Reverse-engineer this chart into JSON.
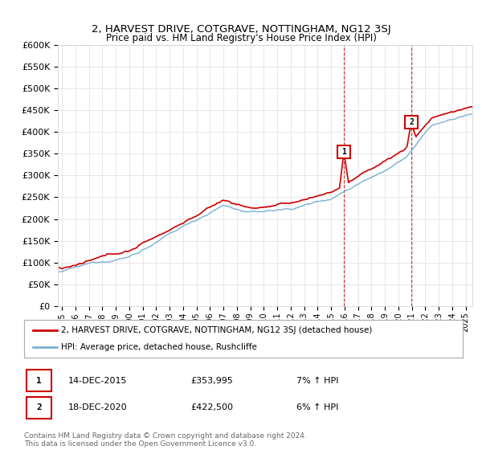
{
  "title": "2, HARVEST DRIVE, COTGRAVE, NOTTINGHAM, NG12 3SJ",
  "subtitle": "Price paid vs. HM Land Registry's House Price Index (HPI)",
  "legend_line1": "2, HARVEST DRIVE, COTGRAVE, NOTTINGHAM, NG12 3SJ (detached house)",
  "legend_line2": "HPI: Average price, detached house, Rushcliffe",
  "sale1_label": "1",
  "sale1_date": "14-DEC-2015",
  "sale1_price": "£353,995",
  "sale1_hpi": "7% ↑ HPI",
  "sale2_label": "2",
  "sale2_date": "18-DEC-2020",
  "sale2_price": "£422,500",
  "sale2_hpi": "6% ↑ HPI",
  "footnote": "Contains HM Land Registry data © Crown copyright and database right 2024.\nThis data is licensed under the Open Government Licence v3.0.",
  "red_color": "#cc0000",
  "blue_color": "#7aafd4",
  "marker_box_color": "#cc0000",
  "ylim": [
    0,
    600000
  ],
  "yticks": [
    0,
    50000,
    100000,
    150000,
    200000,
    250000,
    300000,
    350000,
    400000,
    450000,
    500000,
    550000,
    600000
  ],
  "xlim_start": 1994.7,
  "xlim_end": 2025.5,
  "sale1_year": 2015.96,
  "sale2_year": 2020.96,
  "sale1_value": 353995,
  "sale2_value": 422500
}
